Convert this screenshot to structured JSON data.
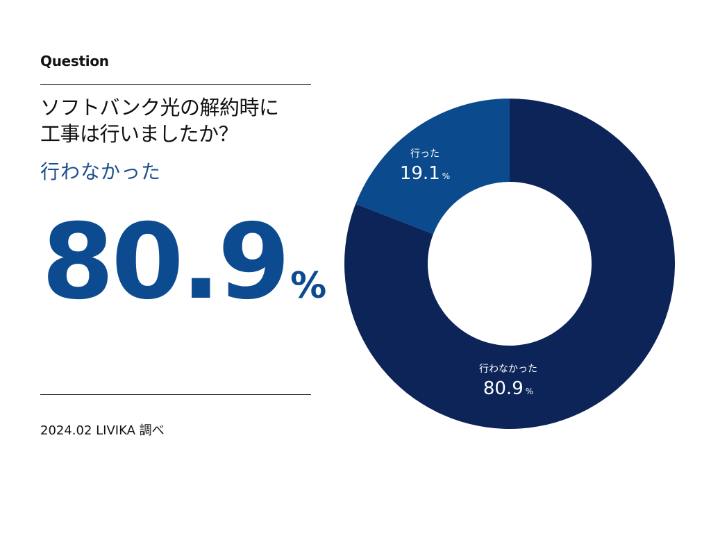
{
  "header": {
    "label": "Question",
    "question": "ソフトバンク光の解約時に\n工事は行いましたか？"
  },
  "highlight": {
    "answer": "行わなかった",
    "value": "80.9",
    "unit": "%"
  },
  "footer": {
    "source": "2024.02 LIVIKA 調べ"
  },
  "colors": {
    "primary": "#0d4b91",
    "dark_slice": "#0d2459",
    "light_slice": "#0b4a8c"
  },
  "chart_data": {
    "type": "pie",
    "donut": true,
    "slices": [
      {
        "label": "行わなかった",
        "value": 80.9,
        "display": "80.9",
        "unit": "%",
        "color": "#0d2459"
      },
      {
        "label": "行った",
        "value": 19.1,
        "display": "19.1",
        "unit": "%",
        "color": "#0b4a8c"
      }
    ],
    "start": "top",
    "direction": "clockwise"
  }
}
